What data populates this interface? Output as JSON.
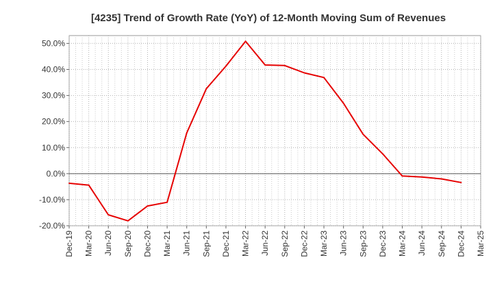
{
  "chart_data": {
    "type": "line",
    "title": "[4235]  Trend of Growth Rate (YoY) of 12-Month Moving Sum of Revenues",
    "xlabel": "",
    "ylabel": "",
    "ylim": [
      -20,
      53
    ],
    "yticks": [
      -20,
      -10,
      0,
      10,
      20,
      30,
      40,
      50
    ],
    "ytick_labels": [
      "-20.0%",
      "-10.0%",
      "0.0%",
      "10.0%",
      "20.0%",
      "30.0%",
      "40.0%",
      "50.0%"
    ],
    "x_labels": [
      "Dec-19",
      "Mar-20",
      "Jun-20",
      "Sep-20",
      "Dec-20",
      "Mar-21",
      "Jun-21",
      "Sep-21",
      "Dec-21",
      "Mar-22",
      "Jun-22",
      "Sep-22",
      "Dec-22",
      "Mar-23",
      "Jun-23",
      "Sep-23",
      "Dec-23",
      "Mar-24",
      "Jun-24",
      "Sep-24",
      "Dec-24",
      "Mar-25"
    ],
    "grid": true,
    "series": [
      {
        "color": "#e60000",
        "values": [
          -3.7,
          -4.4,
          -15.8,
          -18.1,
          -12.4,
          -11.0,
          15.6,
          32.6,
          41.3,
          50.8,
          41.7,
          41.5,
          38.7,
          36.9,
          27.0,
          15.1,
          7.6,
          -0.9,
          -1.3,
          -2.0,
          -3.4,
          null
        ]
      }
    ]
  }
}
